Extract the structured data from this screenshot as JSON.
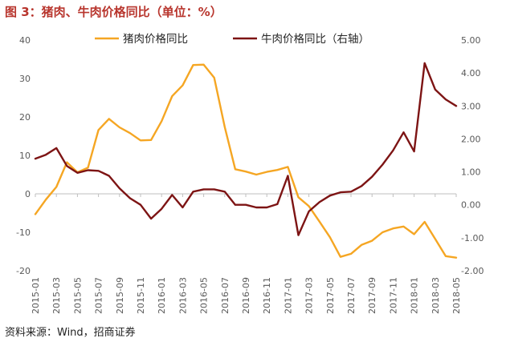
{
  "title": "图 3：猪肉、牛肉价格同比（单位：%）",
  "source": "资料来源：Wind，招商证券",
  "colors": {
    "pork": "#f5a623",
    "beef": "#7d1414",
    "title": "#b8352d",
    "axis": "#bfbfbf"
  },
  "chart_data": {
    "type": "line",
    "x": [
      "2015-01",
      "2015-02",
      "2015-03",
      "2015-04",
      "2015-05",
      "2015-06",
      "2015-07",
      "2015-08",
      "2015-09",
      "2015-10",
      "2015-11",
      "2015-12",
      "2016-01",
      "2016-02",
      "2016-03",
      "2016-04",
      "2016-05",
      "2016-06",
      "2016-07",
      "2016-08",
      "2016-09",
      "2016-10",
      "2016-11",
      "2016-12",
      "2017-01",
      "2017-02",
      "2017-03",
      "2017-04",
      "2017-05",
      "2017-06",
      "2017-07",
      "2017-08",
      "2017-09",
      "2017-10",
      "2017-11",
      "2017-12",
      "2018-01",
      "2018-02",
      "2018-03",
      "2018-04",
      "2018-05"
    ],
    "x_tick_labels": [
      "2015-01",
      "2015-03",
      "2015-05",
      "2015-07",
      "2015-09",
      "2015-11",
      "2016-01",
      "2016-03",
      "2016-05",
      "2016-07",
      "2016-09",
      "2016-11",
      "2017-01",
      "2017-03",
      "2017-05",
      "2017-07",
      "2017-09",
      "2017-11",
      "2018-01",
      "2018-03",
      "2018-05"
    ],
    "y_left": {
      "min": -20,
      "max": 40,
      "ticks": [
        -20,
        -10,
        0,
        10,
        20,
        30,
        40
      ]
    },
    "y_right": {
      "min": -2,
      "max": 5,
      "ticks": [
        "-2.00",
        "-1.00",
        "0.00",
        "1.00",
        "2.00",
        "3.00",
        "4.00",
        "5.00"
      ]
    },
    "legend_position": "top",
    "series": [
      {
        "name": "猪肉价格同比",
        "axis": "left",
        "values": [
          -5.3,
          -1.5,
          1.8,
          8.2,
          5.6,
          6.8,
          16.6,
          19.5,
          17.3,
          15.8,
          13.9,
          14.0,
          18.9,
          25.4,
          28.2,
          33.5,
          33.6,
          30.2,
          17.4,
          6.4,
          5.8,
          5.0,
          5.7,
          6.2,
          7.0,
          -0.9,
          -3.2,
          -7.2,
          -11.3,
          -16.4,
          -15.6,
          -13.3,
          -12.2,
          -10.0,
          -9.0,
          -8.5,
          -10.5,
          -7.3,
          -11.7,
          -16.2,
          -16.6
        ]
      },
      {
        "name": "牛肉价格同比（右轴）",
        "axis": "right",
        "values": [
          1.4,
          1.52,
          1.72,
          1.18,
          0.97,
          1.05,
          1.03,
          0.88,
          0.5,
          0.2,
          0.0,
          -0.42,
          -0.12,
          0.3,
          -0.08,
          0.4,
          0.47,
          0.47,
          0.4,
          0.0,
          0.0,
          -0.08,
          -0.08,
          0.02,
          0.88,
          -0.92,
          -0.2,
          0.08,
          0.28,
          0.38,
          0.4,
          0.57,
          0.85,
          1.22,
          1.65,
          2.2,
          1.62,
          4.3,
          3.5,
          3.2,
          3.0
        ]
      }
    ]
  }
}
